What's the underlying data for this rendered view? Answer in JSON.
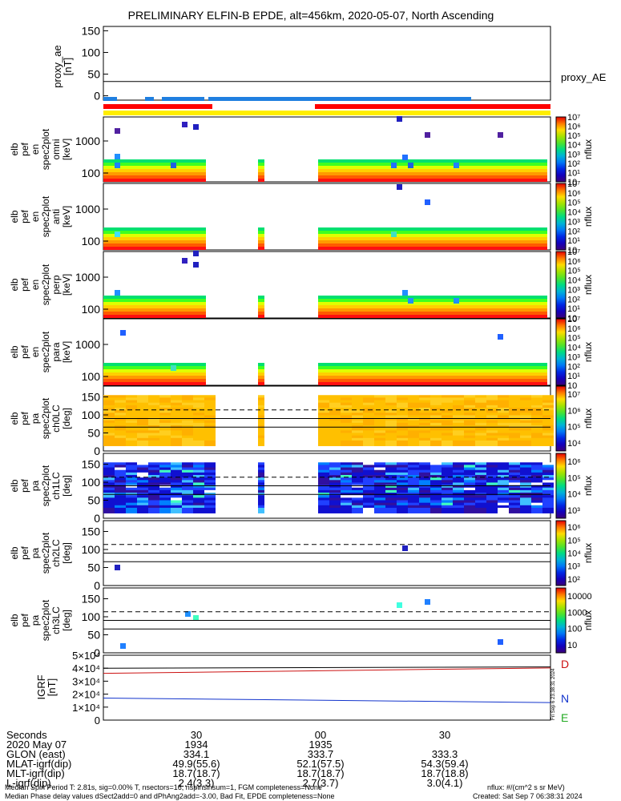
{
  "title": "PRELIMINARY ELFIN-B EPDE, alt=456km, 2020-05-07, North Ascending",
  "colors": {
    "bar_blue": "#1f7fe0",
    "bar_red": "#ff0000",
    "bar_yellow": "#ffee00",
    "ae_line": "#000000",
    "igrf_D": "#cc1111",
    "igrf_N": "#1133cc",
    "igrf_E": "#22aa22"
  },
  "chart_data": [
    {
      "type": "line",
      "panel": "proxy_ae",
      "ylabel_lines": [
        "proxy_ae",
        "[nT]"
      ],
      "yticks": [
        0,
        50,
        100,
        150
      ],
      "ylim": [
        -10,
        160
      ],
      "series": [
        {
          "name": "proxy_AE",
          "x": [
            0,
            6
          ],
          "y": [
            33,
            33
          ]
        }
      ]
    },
    {
      "type": "heatmap",
      "panel": "pef_en_spec2plot_omni",
      "ylabel_lines": [
        "elb",
        "pef",
        "en",
        "spec2plot",
        "omni",
        "[keV]"
      ],
      "yticks": [
        100,
        1000
      ],
      "colorbar": {
        "label": "nflux",
        "ticks": [
          "10",
          "10¹",
          "10²",
          "10³",
          "10⁴",
          "10⁵",
          "10⁶",
          "10⁷"
        ]
      }
    },
    {
      "type": "heatmap",
      "panel": "pef_en_spec2plot_anti",
      "ylabel_lines": [
        "elb",
        "pef",
        "en",
        "spec2plot",
        "anti",
        "[keV]"
      ],
      "yticks": [
        100,
        1000
      ],
      "colorbar": {
        "label": "nflux",
        "ticks": [
          "10",
          "10¹",
          "10²",
          "10³",
          "10⁴",
          "10⁵",
          "10⁶",
          "10⁷"
        ]
      }
    },
    {
      "type": "heatmap",
      "panel": "pef_en_spec2plot_perp",
      "ylabel_lines": [
        "elb",
        "pef",
        "en",
        "spec2plot",
        "perp",
        "[keV]"
      ],
      "yticks": [
        100,
        1000
      ],
      "colorbar": {
        "label": "nflux",
        "ticks": [
          "10",
          "10¹",
          "10²",
          "10³",
          "10⁴",
          "10⁵",
          "10⁶",
          "10⁷"
        ]
      }
    },
    {
      "type": "heatmap",
      "panel": "pef_en_spec2plot_para",
      "ylabel_lines": [
        "elb",
        "pef",
        "en",
        "spec2plot",
        "para",
        "[keV]"
      ],
      "yticks": [
        100,
        1000
      ],
      "colorbar": {
        "label": "nflux",
        "ticks": [
          "10",
          "10¹",
          "10²",
          "10³",
          "10⁴",
          "10⁵",
          "10⁶",
          "10⁷"
        ]
      }
    },
    {
      "type": "heatmap",
      "panel": "pef_pa_spec2plot_ch0LC",
      "ylabel_lines": [
        "elb",
        "pef",
        "pa",
        "spec2plot",
        "ch0LC",
        "[deg]"
      ],
      "yticks": [
        0,
        50,
        100,
        150
      ],
      "ylim": [
        0,
        180
      ],
      "colorbar": {
        "label": "nflux",
        "ticks": [
          "10⁴",
          "10⁵",
          "10⁶",
          "10⁷"
        ]
      }
    },
    {
      "type": "heatmap",
      "panel": "pef_pa_spec2plot_ch1LC",
      "ylabel_lines": [
        "elb",
        "pef",
        "pa",
        "spec2plot",
        "ch1LC",
        "[deg]"
      ],
      "yticks": [
        0,
        50,
        100,
        150
      ],
      "ylim": [
        0,
        180
      ],
      "colorbar": {
        "label": "nflux",
        "ticks": [
          "10³",
          "10⁴",
          "10⁵",
          "10⁶"
        ]
      }
    },
    {
      "type": "heatmap",
      "panel": "pef_pa_spec2plot_ch2LC",
      "ylabel_lines": [
        "elb",
        "pef",
        "pa",
        "spec2plot",
        "ch2LC",
        "[deg]"
      ],
      "yticks": [
        0,
        50,
        100,
        150
      ],
      "ylim": [
        0,
        180
      ],
      "colorbar": {
        "label": "nflux",
        "ticks": [
          "10²",
          "10³",
          "10⁴",
          "10⁵",
          "10⁶"
        ]
      }
    },
    {
      "type": "heatmap",
      "panel": "pef_pa_spec2plot_ch3LC",
      "ylabel_lines": [
        "elb",
        "pef",
        "pa",
        "spec2plot",
        "ch3LC",
        "[deg]"
      ],
      "yticks": [
        0,
        50,
        100,
        150
      ],
      "ylim": [
        0,
        180
      ],
      "colorbar": {
        "label": "nflux",
        "ticks": [
          "10",
          "100",
          "1000",
          "10000"
        ]
      }
    },
    {
      "type": "line",
      "panel": "igrf",
      "ylabel_lines": [
        "IGRF",
        "[nT]"
      ],
      "yticks": [
        "0",
        "1×10⁴",
        "2×10⁴",
        "3×10⁴",
        "4×10⁴",
        "5×10⁴"
      ],
      "ylim": [
        0,
        50000
      ],
      "series": [
        {
          "name": "D",
          "x": [
            0,
            6
          ],
          "y": [
            36000,
            40200
          ]
        },
        {
          "name": "N",
          "x": [
            0,
            6
          ],
          "y": [
            17000,
            13500
          ]
        },
        {
          "name": "E",
          "x": [
            0,
            6
          ],
          "y": [
            40000,
            41000
          ]
        }
      ]
    }
  ],
  "xaxis": {
    "ticks": [
      "30",
      "00",
      "30"
    ],
    "rows": [
      {
        "label": "Seconds",
        "values": [
          "30",
          "00",
          "30"
        ]
      },
      {
        "label": "2020 May 07",
        "values": [
          "1934",
          "1935",
          ""
        ]
      },
      {
        "label": "GLON (east)",
        "values": [
          "334.1",
          "333.7",
          "333.3"
        ]
      },
      {
        "label": "MLAT-igrf(dip)",
        "values": [
          "49.9(55.6)",
          "52.1(57.5)",
          "54.3(59.4)"
        ]
      },
      {
        "label": "MLT-igrf(dip)",
        "values": [
          "18.7(18.7)",
          "18.7(18.7)",
          "18.7(18.8)"
        ]
      },
      {
        "label": "L-igrf(dip)",
        "values": [
          "2.4(3.3)",
          "2.7(3.7)",
          "3.0(4.1)"
        ]
      }
    ]
  },
  "footer": {
    "line1": "Median Spin Period T: 2.81s, sig=0.00% T, nsectors=16, nspinsinsum=1, FGM completeness=None",
    "line2": "Median Phase delay values dSect2add=0 and dPhAng2add=-3.00, Bad Fit, EPDE completeness=None",
    "units": "nflux: #/(cm^2 s sr MeV)",
    "created": "Created: Sat Sep  7 06:38:31 2024",
    "side_stamp": "Fri Sep 6 23:38:31 2024"
  }
}
